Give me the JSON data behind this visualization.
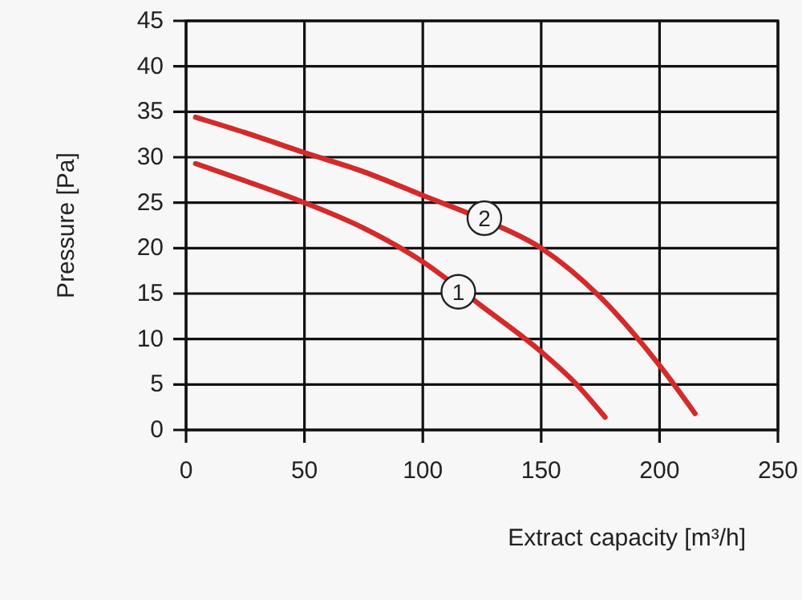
{
  "chart_data": {
    "type": "line",
    "xlabel": "Extract capacity [m³/h]",
    "ylabel": "Pressure [Pa]",
    "xlim": [
      0,
      250
    ],
    "ylim": [
      0,
      45
    ],
    "xticks": [
      0,
      50,
      100,
      150,
      200,
      250
    ],
    "yticks": [
      0,
      5,
      10,
      15,
      20,
      25,
      30,
      35,
      40,
      45
    ],
    "grid": true,
    "marker": "none",
    "line_style": "solid",
    "series": [
      {
        "color": "#d42a2a",
        "x": [
          4,
          25,
          50,
          75,
          100,
          125,
          150,
          165,
          177
        ],
        "values": [
          29.3,
          27.4,
          25,
          22.2,
          18.5,
          13.6,
          8.6,
          5,
          1.4
        ]
      },
      {
        "color": "#d42a2a",
        "x": [
          4,
          25,
          50,
          75,
          100,
          125,
          150,
          175,
          200,
          215
        ],
        "values": [
          34.4,
          32.7,
          30.5,
          28.4,
          25.8,
          23.2,
          20,
          14.6,
          7.1,
          1.8
        ]
      }
    ],
    "annotations": [
      {
        "text": "1",
        "x": 115,
        "y": 15.2
      },
      {
        "text": "2",
        "x": 126,
        "y": 23.3
      }
    ]
  }
}
